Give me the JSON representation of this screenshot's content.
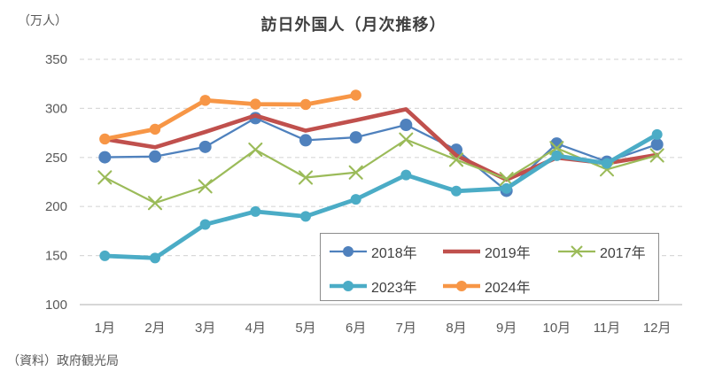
{
  "chart_data": {
    "type": "line",
    "title": "訪日外国人（月次推移）",
    "unit_label": "（万人）",
    "source": "（資料）政府観光局",
    "xlabel": "",
    "ylabel": "万人",
    "x_categories": [
      "1月",
      "2月",
      "3月",
      "4月",
      "5月",
      "6月",
      "7月",
      "8月",
      "9月",
      "10月",
      "11月",
      "12月"
    ],
    "ylim": [
      100,
      350
    ],
    "y_ticks": [
      350,
      300,
      250,
      200,
      150,
      100
    ],
    "grid": "horizontal-dashed",
    "legend_position": "inside-bottom-right",
    "colors": {
      "grid": "#d9d9d9",
      "axis": "#bfbfbf",
      "tick_text": "#595959",
      "title_text": "#404040"
    },
    "series": [
      {
        "name": "2018年",
        "color": "#4F81BD",
        "marker": "circle",
        "marker_size": 7,
        "line_width": 2.3,
        "values": [
          250.2,
          250.9,
          260.8,
          290.1,
          267.5,
          270.5,
          283.2,
          257.8,
          216.0,
          264.1,
          245.7,
          263.3
        ]
      },
      {
        "name": "2019年",
        "color": "#C0504D",
        "marker": "none",
        "marker_size": 0,
        "line_width": 4.6,
        "values": [
          268.7,
          260.4,
          276.0,
          292.7,
          277.3,
          288.0,
          299.1,
          252.0,
          227.3,
          249.7,
          244.1,
          252.6
        ]
      },
      {
        "name": "2017年",
        "color": "#9BBB59",
        "marker": "x",
        "marker_size": 7,
        "line_width": 2.2,
        "values": [
          229.6,
          203.6,
          220.6,
          257.9,
          229.5,
          234.7,
          268.2,
          247.7,
          228.0,
          259.5,
          237.8,
          252.1
        ]
      },
      {
        "name": "2023年",
        "color": "#4BACC6",
        "marker": "circle",
        "marker_size": 6,
        "line_width": 4.8,
        "values": [
          149.7,
          147.5,
          181.7,
          194.9,
          189.9,
          207.3,
          232.1,
          215.7,
          218.4,
          251.7,
          244.0,
          273.4
        ]
      },
      {
        "name": "2024年",
        "color": "#F79646",
        "marker": "circle",
        "marker_size": 6.2,
        "line_width": 4.8,
        "values": [
          268.8,
          278.8,
          308.2,
          304.3,
          304.0,
          313.5
        ]
      }
    ]
  }
}
